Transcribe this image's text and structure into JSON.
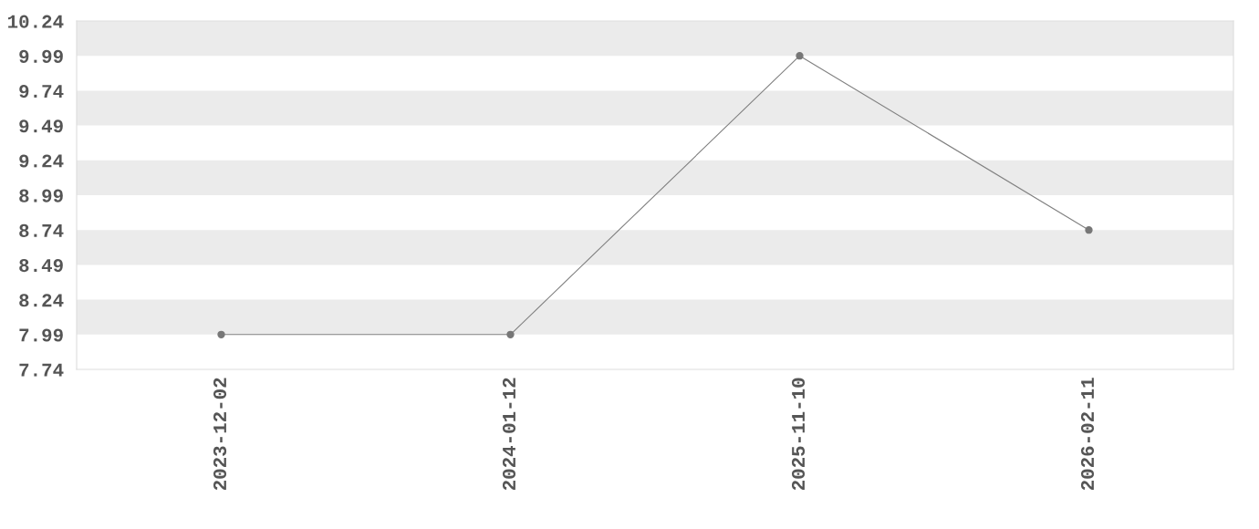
{
  "chart_data": {
    "type": "line",
    "categories": [
      "2023-12-02",
      "2024-01-12",
      "2025-11-10",
      "2026-02-11"
    ],
    "series": [
      {
        "color": "#808080",
        "values": [
          7.99,
          7.99,
          9.99,
          8.74
        ]
      }
    ],
    "ylim": [
      7.74,
      10.24
    ],
    "yticks": [
      7.74,
      7.99,
      8.24,
      8.49,
      8.74,
      8.99,
      9.24,
      9.49,
      9.74,
      9.99,
      10.24
    ],
    "bands": [
      {
        "axis": "y",
        "from": 7.99,
        "to": 8.24,
        "color": "#ebebeb"
      },
      {
        "axis": "y",
        "from": 8.49,
        "to": 8.74,
        "color": "#ebebeb"
      },
      {
        "axis": "y",
        "from": 8.99,
        "to": 9.24,
        "color": "#ebebeb"
      },
      {
        "axis": "y",
        "from": 9.49,
        "to": 9.74,
        "color": "#ebebeb"
      },
      {
        "axis": "y",
        "from": 9.99,
        "to": 10.24,
        "color": "#ebebeb"
      }
    ],
    "marker": "circle",
    "line_style": "solid",
    "grid": false,
    "legend": false
  }
}
